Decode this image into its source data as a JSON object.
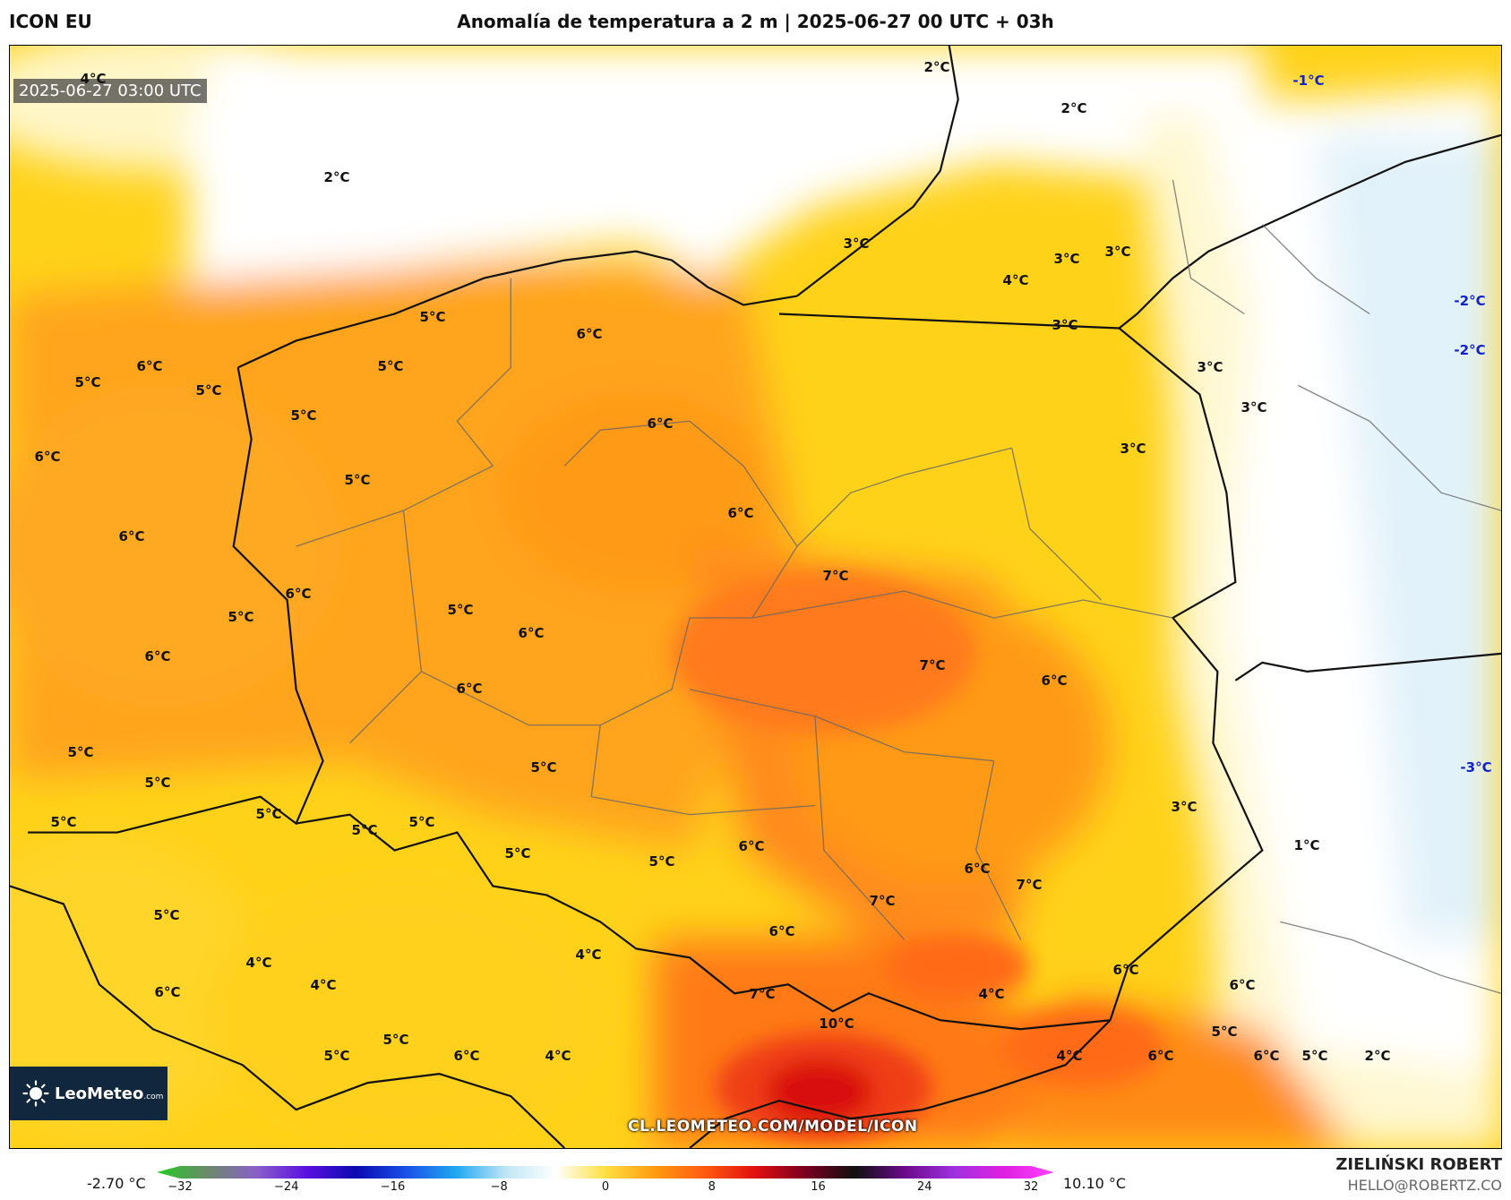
{
  "header": {
    "model": "ICON EU",
    "title": "Anomalía de temperatura a 2 m | 2025-06-27 00 UTC + 03h"
  },
  "map": {
    "valid_time": "2025-06-27 03:00 UTC",
    "url": "CL.LEOMETEO.COM/MODEL/ICON",
    "logo": {
      "name": "LeoMeteo",
      "suffix": ".com",
      "icon": "sun-logo-icon"
    },
    "labels": [
      {
        "t": "4°C"
      },
      {
        "t": "2°C"
      },
      {
        "t": "2°C"
      },
      {
        "t": "2°C"
      },
      {
        "t": "-1°C"
      },
      {
        "t": "3°C"
      },
      {
        "t": "3°C"
      },
      {
        "t": "3°C"
      },
      {
        "t": "4°C"
      },
      {
        "t": "3°C"
      },
      {
        "t": "-2°C"
      },
      {
        "t": "-2°C"
      },
      {
        "t": "5°C"
      },
      {
        "t": "6°C"
      },
      {
        "t": "6°C"
      },
      {
        "t": "5°C"
      },
      {
        "t": "5°C"
      },
      {
        "t": "5°C"
      },
      {
        "t": "5°C"
      },
      {
        "t": "3°C"
      },
      {
        "t": "3°C"
      },
      {
        "t": "6°C"
      },
      {
        "t": "3°C"
      },
      {
        "t": "6°C"
      },
      {
        "t": "5°C"
      },
      {
        "t": "6°C"
      },
      {
        "t": "6°C"
      },
      {
        "t": "7°C"
      },
      {
        "t": "6°C"
      },
      {
        "t": "5°C"
      },
      {
        "t": "5°C"
      },
      {
        "t": "6°C"
      },
      {
        "t": "6°C"
      },
      {
        "t": "7°C"
      },
      {
        "t": "6°C"
      },
      {
        "t": "6°C"
      },
      {
        "t": "5°C"
      },
      {
        "t": "5°C"
      },
      {
        "t": "5°C"
      },
      {
        "t": "-3°C"
      },
      {
        "t": "5°C"
      },
      {
        "t": "5°C"
      },
      {
        "t": "5°C"
      },
      {
        "t": "5°C"
      },
      {
        "t": "3°C"
      },
      {
        "t": "5°C"
      },
      {
        "t": "6°C"
      },
      {
        "t": "5°C"
      },
      {
        "t": "1°C"
      },
      {
        "t": "6°C"
      },
      {
        "t": "7°C"
      },
      {
        "t": "7°C"
      },
      {
        "t": "5°C"
      },
      {
        "t": "6°C"
      },
      {
        "t": "4°C"
      },
      {
        "t": "4°C"
      },
      {
        "t": "4°C"
      },
      {
        "t": "6°C"
      },
      {
        "t": "6°C"
      },
      {
        "t": "7°C"
      },
      {
        "t": "6°C"
      },
      {
        "t": "4°C"
      },
      {
        "t": "10°C"
      },
      {
        "t": "5°C"
      },
      {
        "t": "5°C"
      },
      {
        "t": "6°C"
      },
      {
        "t": "4°C"
      },
      {
        "t": "4°C"
      },
      {
        "t": "6°C"
      },
      {
        "t": "6°C"
      },
      {
        "t": "5°C"
      },
      {
        "t": "2°C"
      },
      {
        "t": "5°C"
      }
    ]
  },
  "colorbar": {
    "min_label": "-2.70 °C",
    "max_label": "10.10 °C",
    "range": [
      -32,
      32
    ],
    "ticks": [
      "−32",
      "−24",
      "−16",
      "−8",
      "0",
      "8",
      "16",
      "24",
      "32"
    ],
    "colors": [
      "#22cc22",
      "#6a8a6a",
      "#8a60c8",
      "#5a10e0",
      "#0a0ab0",
      "#1a50e8",
      "#20a8f0",
      "#bfe6f5",
      "#ffffff",
      "#ffe040",
      "#ff9a10",
      "#ff5a10",
      "#e01010",
      "#7a0020",
      "#101010",
      "#6a0a8a",
      "#a030e0",
      "#e020e0",
      "#ff40ff"
    ]
  },
  "footer": {
    "author": "ZIELIŃSKI ROBERT",
    "email": "HELLO@ROBERTZ.CO"
  }
}
